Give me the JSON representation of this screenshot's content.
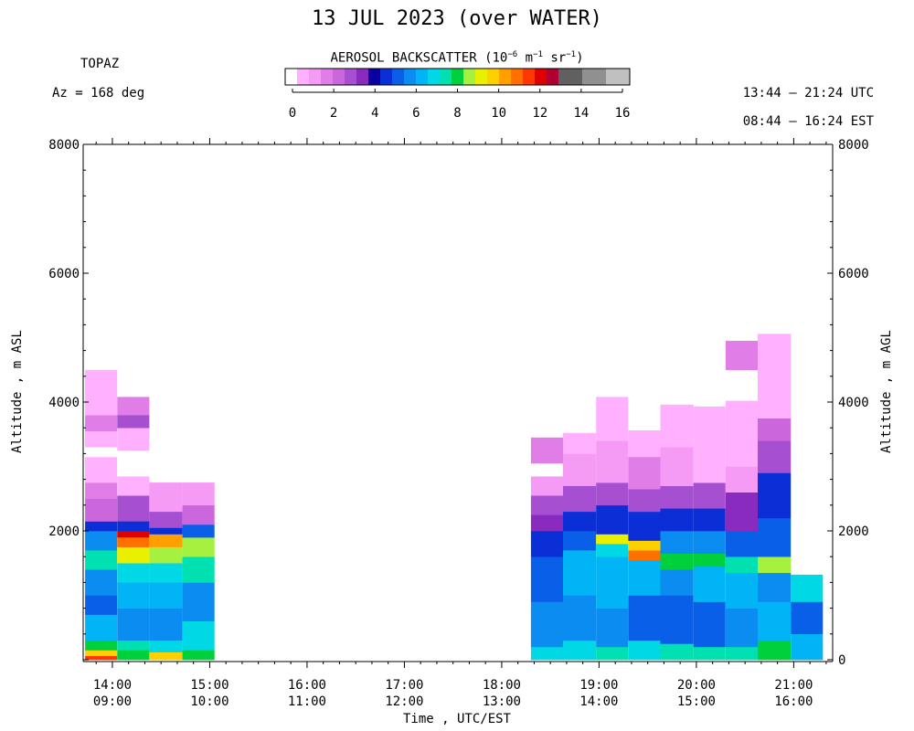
{
  "title": "13 JUL 2023 (over WATER)",
  "station": "TOPAZ",
  "azimuth": "Az = 168 deg",
  "utc_range": "13:44 – 21:24 UTC",
  "est_range": "08:44 – 16:24 EST",
  "colorbar": {
    "title_prefix": "AEROSOL BACKSCATTER (10",
    "title_exp1": "−6",
    "title_mid1": " m",
    "title_exp2": "−1",
    "title_mid2": " sr",
    "title_exp3": "−1",
    "title_suffix": ")",
    "tick_labels": [
      "0",
      "2",
      "4",
      "6",
      "8",
      "10",
      "12",
      "14",
      "16"
    ],
    "colors": [
      "#ffffff",
      "#ffb0ff",
      "#f59af5",
      "#e07de6",
      "#cc66dd",
      "#a64fd0",
      "#8a2bc0",
      "#0a00a0",
      "#0a2fd6",
      "#0a5fe8",
      "#0a8cf0",
      "#00b4f5",
      "#00d8e6",
      "#00e0b0",
      "#00d03c",
      "#a6f040",
      "#e8f000",
      "#ffd000",
      "#ffa000",
      "#ff7000",
      "#ff3800",
      "#e00000",
      "#b00030",
      "#606060",
      "#606060",
      "#909090",
      "#909090",
      "#c0c0c0",
      "#c0c0c0"
    ]
  },
  "chart_data": {
    "type": "heatmap",
    "title": "13 JUL 2023 (over WATER)",
    "xlabel": "Time , UTC/EST",
    "ylabel_left": "Altitude , m ASL",
    "ylabel_right": "Altitude , m AGL",
    "x_range_utc_hours": [
      13.7,
      21.4
    ],
    "ylim": [
      0,
      8000
    ],
    "y_ticks_left": [
      "8000",
      "6000",
      "4000",
      "2000"
    ],
    "y_ticks_right": [
      "8000",
      "6000",
      "4000",
      "2000",
      "0"
    ],
    "y_tick_values": [
      8000,
      6000,
      4000,
      2000,
      0
    ],
    "x_ticks": [
      {
        "utc": "14:00",
        "est": "09:00",
        "hour": 14
      },
      {
        "utc": "15:00",
        "est": "10:00",
        "hour": 15
      },
      {
        "utc": "16:00",
        "est": "11:00",
        "hour": 16
      },
      {
        "utc": "17:00",
        "est": "12:00",
        "hour": 17
      },
      {
        "utc": "18:00",
        "est": "13:00",
        "hour": 18
      },
      {
        "utc": "19:00",
        "est": "14:00",
        "hour": 19
      },
      {
        "utc": "20:00",
        "est": "15:00",
        "hour": 20
      },
      {
        "utc": "21:00",
        "est": "16:00",
        "hour": 21
      }
    ],
    "profiles": [
      {
        "t0": 13.72,
        "t1": 14.05,
        "layers": [
          [
            0,
            60,
            "#ff3800"
          ],
          [
            60,
            150,
            "#ffd000"
          ],
          [
            150,
            300,
            "#00d03c"
          ],
          [
            300,
            700,
            "#00b4f5"
          ],
          [
            700,
            1000,
            "#0a5fe8"
          ],
          [
            1000,
            1400,
            "#0a8cf0"
          ],
          [
            1400,
            1700,
            "#00e0b0"
          ],
          [
            1700,
            2000,
            "#0a8cf0"
          ],
          [
            2000,
            2150,
            "#0a2fd6"
          ],
          [
            2150,
            2500,
            "#cc66dd"
          ],
          [
            2500,
            2750,
            "#e07de6"
          ],
          [
            2750,
            3150,
            "#ffb0ff"
          ],
          [
            3150,
            3300,
            "#ffffff"
          ],
          [
            3300,
            3550,
            "#ffb0ff"
          ],
          [
            3550,
            3800,
            "#e07de6"
          ],
          [
            3800,
            4500,
            "#ffb0ff"
          ]
        ]
      },
      {
        "t0": 14.05,
        "t1": 14.38,
        "layers": [
          [
            0,
            150,
            "#00d03c"
          ],
          [
            150,
            300,
            "#00e0b0"
          ],
          [
            300,
            800,
            "#0a8cf0"
          ],
          [
            800,
            1200,
            "#00b4f5"
          ],
          [
            1200,
            1500,
            "#00d8e6"
          ],
          [
            1500,
            1750,
            "#e8f000"
          ],
          [
            1750,
            1900,
            "#ff7000"
          ],
          [
            1900,
            2000,
            "#e00000"
          ],
          [
            2000,
            2150,
            "#0a2fd6"
          ],
          [
            2150,
            2550,
            "#a64fd0"
          ],
          [
            2550,
            2850,
            "#ffb0ff"
          ],
          [
            2850,
            3250,
            "#ffffff"
          ],
          [
            3250,
            3600,
            "#ffb0ff"
          ],
          [
            3600,
            3800,
            "#a64fd0"
          ],
          [
            3800,
            4080,
            "#e07de6"
          ]
        ]
      },
      {
        "t0": 14.38,
        "t1": 14.72,
        "layers": [
          [
            0,
            120,
            "#ffd000"
          ],
          [
            120,
            300,
            "#00d8e6"
          ],
          [
            300,
            800,
            "#0a8cf0"
          ],
          [
            800,
            1200,
            "#00b4f5"
          ],
          [
            1200,
            1500,
            "#00d8e6"
          ],
          [
            1500,
            1750,
            "#a6f040"
          ],
          [
            1750,
            1950,
            "#ffa000"
          ],
          [
            1950,
            2050,
            "#0a2fd6"
          ],
          [
            2050,
            2300,
            "#a64fd0"
          ],
          [
            2300,
            2750,
            "#f59af5"
          ]
        ]
      },
      {
        "t0": 14.72,
        "t1": 15.05,
        "layers": [
          [
            0,
            150,
            "#00d03c"
          ],
          [
            150,
            600,
            "#00d8e6"
          ],
          [
            600,
            1200,
            "#0a8cf0"
          ],
          [
            1200,
            1600,
            "#00e0b0"
          ],
          [
            1600,
            1900,
            "#a6f040"
          ],
          [
            1900,
            2100,
            "#0a5fe8"
          ],
          [
            2100,
            2400,
            "#cc66dd"
          ],
          [
            2400,
            2750,
            "#f59af5"
          ]
        ]
      },
      {
        "t0": 18.3,
        "t1": 18.63,
        "layers": [
          [
            0,
            200,
            "#00d8e6"
          ],
          [
            200,
            900,
            "#0a8cf0"
          ],
          [
            900,
            1600,
            "#0a5fe8"
          ],
          [
            1600,
            2000,
            "#0a2fd6"
          ],
          [
            2000,
            2250,
            "#8a2bc0"
          ],
          [
            2250,
            2550,
            "#a64fd0"
          ],
          [
            2550,
            2850,
            "#f59af5"
          ],
          [
            2850,
            3050,
            "#ffffff"
          ],
          [
            3050,
            3450,
            "#e07de6"
          ]
        ]
      },
      {
        "t0": 18.63,
        "t1": 18.97,
        "layers": [
          [
            0,
            300,
            "#00d8e6"
          ],
          [
            300,
            1000,
            "#0a8cf0"
          ],
          [
            1000,
            1700,
            "#00b4f5"
          ],
          [
            1700,
            2000,
            "#0a5fe8"
          ],
          [
            2000,
            2300,
            "#0a2fd6"
          ],
          [
            2300,
            2700,
            "#a64fd0"
          ],
          [
            2700,
            3200,
            "#f59af5"
          ],
          [
            3200,
            3520,
            "#ffb0ff"
          ]
        ]
      },
      {
        "t0": 18.97,
        "t1": 19.3,
        "layers": [
          [
            0,
            200,
            "#00e0b0"
          ],
          [
            200,
            800,
            "#0a8cf0"
          ],
          [
            800,
            1600,
            "#00b4f5"
          ],
          [
            1600,
            1800,
            "#00d8e6"
          ],
          [
            1800,
            1950,
            "#e8f000"
          ],
          [
            1950,
            2400,
            "#0a2fd6"
          ],
          [
            2400,
            2750,
            "#a64fd0"
          ],
          [
            2750,
            3400,
            "#f59af5"
          ],
          [
            3400,
            4080,
            "#ffb0ff"
          ]
        ]
      },
      {
        "t0": 19.3,
        "t1": 19.63,
        "layers": [
          [
            0,
            300,
            "#00d8e6"
          ],
          [
            300,
            1000,
            "#0a5fe8"
          ],
          [
            1000,
            1550,
            "#00b4f5"
          ],
          [
            1550,
            1700,
            "#ff7000"
          ],
          [
            1700,
            1850,
            "#ffd000"
          ],
          [
            1850,
            2300,
            "#0a2fd6"
          ],
          [
            2300,
            2650,
            "#a64fd0"
          ],
          [
            2650,
            3150,
            "#e07de6"
          ],
          [
            3150,
            3560,
            "#ffb0ff"
          ]
        ]
      },
      {
        "t0": 19.63,
        "t1": 19.97,
        "layers": [
          [
            0,
            250,
            "#00e0b0"
          ],
          [
            250,
            1000,
            "#0a5fe8"
          ],
          [
            1000,
            1400,
            "#0a8cf0"
          ],
          [
            1400,
            1650,
            "#00d03c"
          ],
          [
            1650,
            2000,
            "#0a8cf0"
          ],
          [
            2000,
            2350,
            "#0a2fd6"
          ],
          [
            2350,
            2700,
            "#a64fd0"
          ],
          [
            2700,
            3300,
            "#f59af5"
          ],
          [
            3300,
            3960,
            "#ffb0ff"
          ]
        ]
      },
      {
        "t0": 19.97,
        "t1": 20.3,
        "layers": [
          [
            0,
            200,
            "#00e0b0"
          ],
          [
            200,
            900,
            "#0a5fe8"
          ],
          [
            900,
            1450,
            "#00b4f5"
          ],
          [
            1450,
            1650,
            "#00d03c"
          ],
          [
            1650,
            2000,
            "#0a8cf0"
          ],
          [
            2000,
            2350,
            "#0a2fd6"
          ],
          [
            2350,
            2750,
            "#a64fd0"
          ],
          [
            2750,
            3300,
            "#ffb0ff"
          ],
          [
            3300,
            3930,
            "#ffb0ff"
          ]
        ]
      },
      {
        "t0": 20.3,
        "t1": 20.63,
        "layers": [
          [
            0,
            200,
            "#00e0b0"
          ],
          [
            200,
            800,
            "#0a8cf0"
          ],
          [
            800,
            1350,
            "#00b4f5"
          ],
          [
            1350,
            1600,
            "#00e0b0"
          ],
          [
            1600,
            2000,
            "#0a5fe8"
          ],
          [
            2000,
            2600,
            "#8a2bc0"
          ],
          [
            2600,
            3000,
            "#f59af5"
          ],
          [
            3000,
            4020,
            "#ffb0ff"
          ],
          [
            4500,
            4950,
            "#e07de6"
          ]
        ]
      },
      {
        "t0": 20.63,
        "t1": 20.97,
        "layers": [
          [
            0,
            300,
            "#00d03c"
          ],
          [
            300,
            900,
            "#00b4f5"
          ],
          [
            900,
            1350,
            "#0a8cf0"
          ],
          [
            1350,
            1600,
            "#a6f040"
          ],
          [
            1600,
            2200,
            "#0a5fe8"
          ],
          [
            2200,
            2900,
            "#0a2fd6"
          ],
          [
            2900,
            3400,
            "#a64fd0"
          ],
          [
            3400,
            3750,
            "#cc66dd"
          ],
          [
            3750,
            5060,
            "#ffb0ff"
          ]
        ]
      },
      {
        "t0": 20.97,
        "t1": 21.3,
        "layers": [
          [
            0,
            400,
            "#00b4f5"
          ],
          [
            400,
            900,
            "#0a5fe8"
          ],
          [
            900,
            1320,
            "#00d8e6"
          ]
        ]
      }
    ]
  }
}
